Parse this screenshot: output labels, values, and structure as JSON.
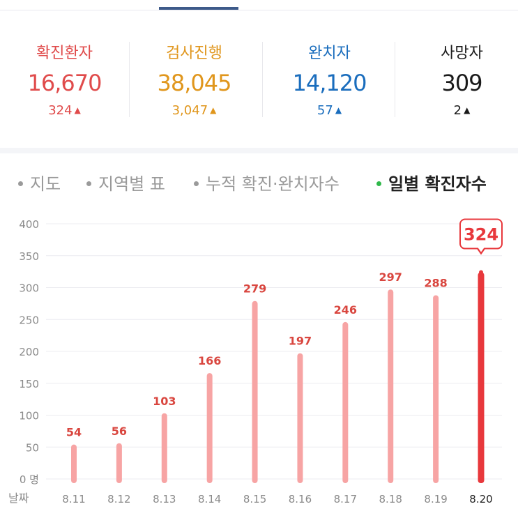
{
  "stats": [
    {
      "label": "확진환자",
      "value": "16,670",
      "delta": "324",
      "color": "#e04b4b"
    },
    {
      "label": "검사진행",
      "value": "38,045",
      "delta": "3,047",
      "color": "#e0961c"
    },
    {
      "label": "완치자",
      "value": "14,120",
      "delta": "57",
      "color": "#1a6dbd"
    },
    {
      "label": "사망자",
      "value": "309",
      "delta": "2",
      "color": "#1a1a1a"
    }
  ],
  "tabs": [
    {
      "label": "지도",
      "active": false
    },
    {
      "label": "지역별 표",
      "active": false
    },
    {
      "label": "누적 확진·완치자수",
      "active": false
    },
    {
      "label": "일별 확진자수",
      "active": true
    }
  ],
  "chart_data": {
    "type": "bar",
    "categories": [
      "8.11",
      "8.12",
      "8.13",
      "8.14",
      "8.15",
      "8.16",
      "8.17",
      "8.18",
      "8.19",
      "8.20"
    ],
    "values": [
      54,
      56,
      103,
      166,
      279,
      197,
      246,
      297,
      288,
      324
    ],
    "ylim": [
      0,
      400
    ],
    "yticks": [
      "0 명",
      "50",
      "100",
      "150",
      "200",
      "250",
      "300",
      "350",
      "400"
    ],
    "xlabel": "날짜",
    "highlight_index": 9,
    "grid": true,
    "colors": {
      "bar": "#f7a4a4",
      "highlight": "#e8383c",
      "value_label": "#d9463f"
    }
  }
}
